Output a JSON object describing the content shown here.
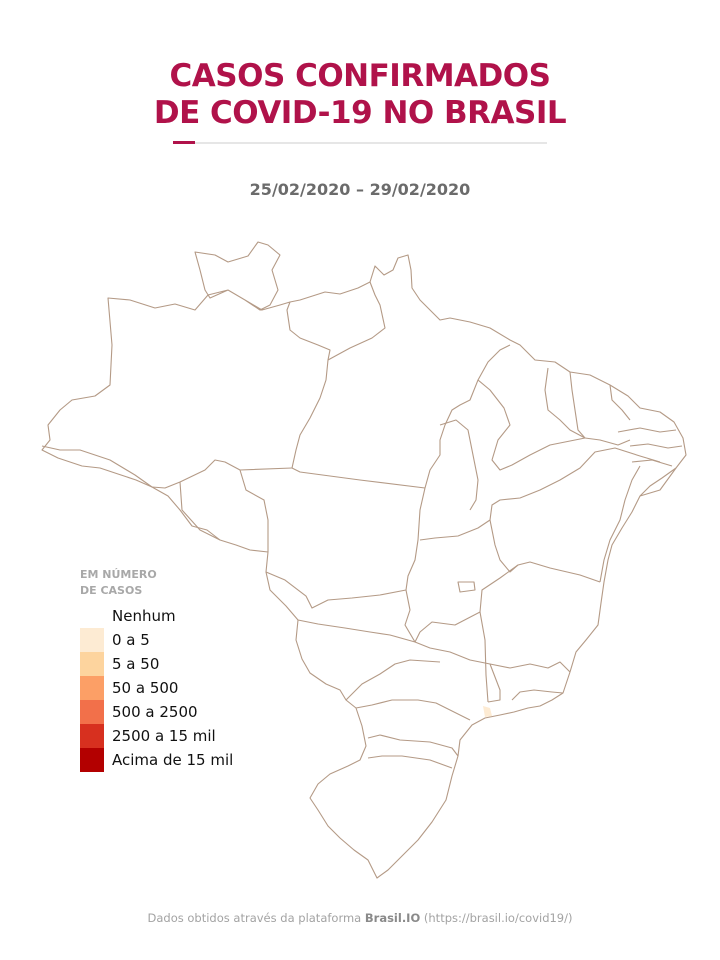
{
  "title": {
    "line1": "CASOS CONFIRMADOS",
    "line2": "DE COVID-19 NO BRASIL"
  },
  "date_range": "25/02/2020 – 29/02/2020",
  "legend": {
    "title_line1": "EM NÚMERO",
    "title_line2": "DE CASOS",
    "items": [
      {
        "label": "Nenhum",
        "color": "#ffffff"
      },
      {
        "label": "0 a 5",
        "color": "#fdebd3"
      },
      {
        "label": "5 a 50",
        "color": "#fdd49e"
      },
      {
        "label": "50 a 500",
        "color": "#fc9f66"
      },
      {
        "label": "500 a 2500",
        "color": "#f2704a"
      },
      {
        "label": "2500 a 15 mil",
        "color": "#d7301f"
      },
      {
        "label": "Acima de 15 mil",
        "color": "#b30000"
      }
    ]
  },
  "map": {
    "border_color": "#b49a86",
    "highlight": {
      "state": "SP",
      "category": "0 a 5",
      "color": "#fdebd3"
    }
  },
  "footer": {
    "prefix": "Dados obtidos através da plataforma ",
    "brand": "Brasil.IO",
    "suffix": " (https://brasil.io/covid19/)"
  },
  "colors": {
    "accent": "#b0124a",
    "rule": "#e6e6e6",
    "date_text": "#6b6b6b"
  }
}
